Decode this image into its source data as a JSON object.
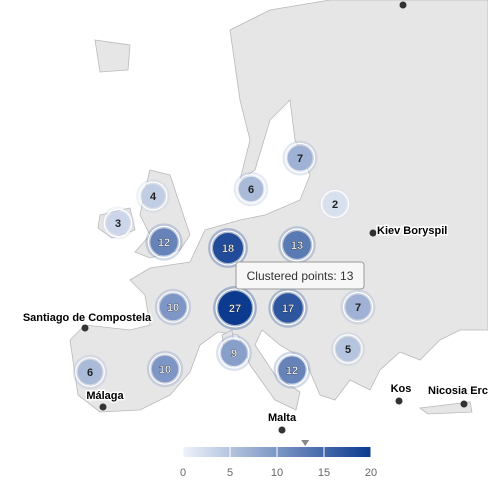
{
  "clusters": [
    {
      "count": 7
    },
    {
      "count": 4
    },
    {
      "count": 6
    },
    {
      "count": 2
    },
    {
      "count": 3
    },
    {
      "count": 12
    },
    {
      "count": 18
    },
    {
      "count": 13
    },
    {
      "count": 10
    },
    {
      "count": 27
    },
    {
      "count": 17
    },
    {
      "count": 7
    },
    {
      "count": 5
    },
    {
      "count": 6
    },
    {
      "count": 10
    },
    {
      "count": 9
    },
    {
      "count": 12
    }
  ],
  "cities": [
    "Kiev Boryspil",
    "Santiago de Compostela",
    "Málaga",
    "Malta",
    "Kos",
    "Nicosia Erc"
  ],
  "tooltip": {
    "label": "Clustered points:",
    "value": 13
  },
  "color_axis": {
    "min": 0,
    "max": 20,
    "ticks": [
      0,
      5,
      10,
      15,
      20
    ]
  }
}
